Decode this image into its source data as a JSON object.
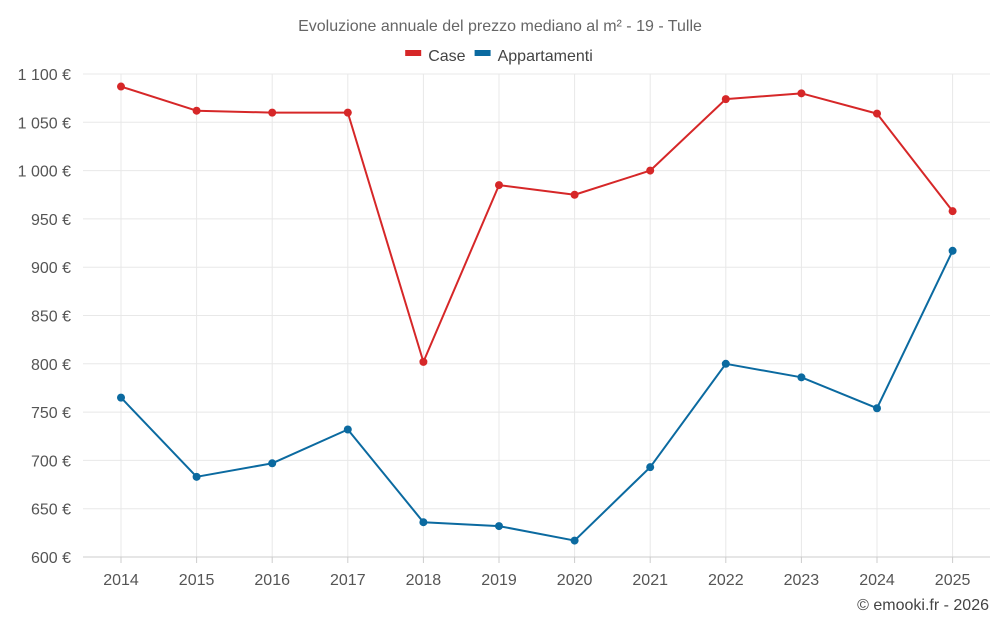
{
  "chart_data": {
    "type": "line",
    "title": "Evoluzione annuale del prezzo mediano al m² - 19 - Tulle",
    "categories": [
      "2014",
      "2015",
      "2016",
      "2017",
      "2018",
      "2019",
      "2020",
      "2021",
      "2022",
      "2023",
      "2024",
      "2025"
    ],
    "series": [
      {
        "name": "Case",
        "color": "#d62728",
        "values": [
          1087,
          1062,
          1060,
          1060,
          802,
          985,
          975,
          1000,
          1074,
          1080,
          1059,
          958
        ]
      },
      {
        "name": "Appartamenti",
        "color": "#0b6aa0",
        "values": [
          765,
          683,
          697,
          732,
          636,
          632,
          617,
          693,
          800,
          786,
          754,
          917
        ]
      }
    ],
    "ylim": [
      600,
      1100
    ],
    "yticks": [
      600,
      650,
      700,
      750,
      800,
      850,
      900,
      950,
      1000,
      1050,
      1100
    ],
    "ytick_labels": [
      "600 €",
      "650 €",
      "700 €",
      "750 €",
      "800 €",
      "850 €",
      "900 €",
      "950 €",
      "1 000 €",
      "1 050 €",
      "1 100 €"
    ],
    "legend_position": "top-center",
    "grid": true,
    "xlabel": "",
    "ylabel": ""
  },
  "credit": "© emooki.fr - 2026"
}
